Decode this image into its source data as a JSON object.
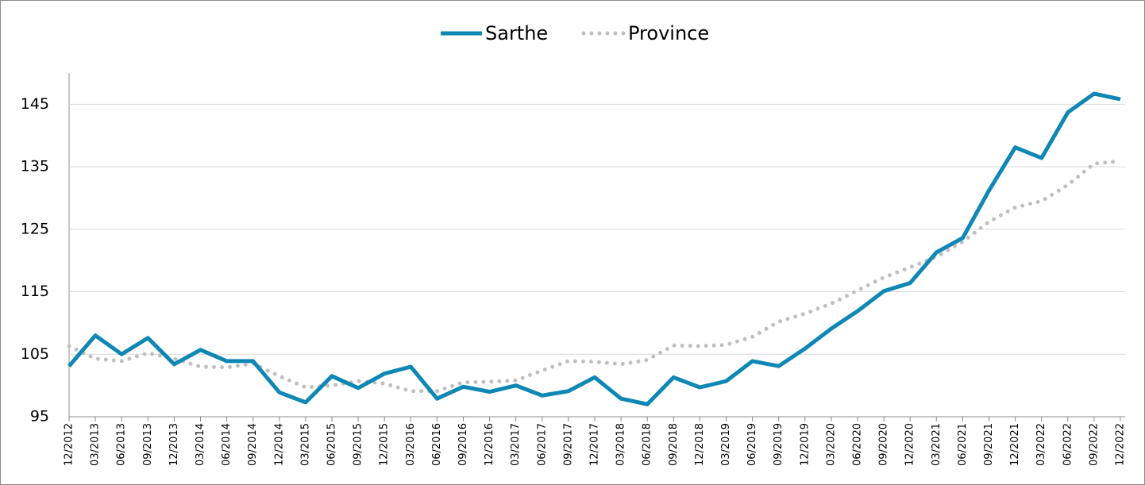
{
  "chart_data": {
    "type": "line",
    "categories": [
      "12/2012",
      "03/2013",
      "06/2013",
      "09/2013",
      "12/2013",
      "03/2014",
      "06/2014",
      "09/2014",
      "12/2014",
      "03/2015",
      "06/2015",
      "09/2015",
      "12/2015",
      "03/2016",
      "06/2016",
      "09/2016",
      "12/2016",
      "03/2017",
      "06/2017",
      "09/2017",
      "12/2017",
      "03/2018",
      "06/2018",
      "09/2018",
      "12/2018",
      "03/2019",
      "06/2019",
      "09/2019",
      "12/2019",
      "03/2020",
      "06/2020",
      "09/2020",
      "12/2020",
      "03/2021",
      "06/2021",
      "09/2021",
      "12/2021",
      "03/2022",
      "06/2022",
      "09/2022",
      "12/2022"
    ],
    "series": [
      {
        "name": "Sarthe",
        "color": "#0f87b5",
        "style": "solid",
        "values": [
          103.1,
          108,
          105,
          107.6,
          103.4,
          105.7,
          103.9,
          103.9,
          98.9,
          97.3,
          101.5,
          99.6,
          101.9,
          103,
          97.9,
          99.8,
          99,
          100,
          98.4,
          99.1,
          101.3,
          97.9,
          97,
          101.3,
          99.7,
          100.7,
          103.9,
          103.1,
          105.9,
          109.1,
          111.9,
          115.1,
          116.4,
          121.3,
          123.6,
          131.2,
          138.1,
          136.4,
          143.7,
          146.7,
          145.8
        ]
      },
      {
        "name": "Province",
        "color": "#c0c0c0",
        "style": "dotted",
        "values": [
          106.3,
          104.3,
          103.9,
          105.2,
          104.3,
          103,
          102.9,
          103.5,
          101.5,
          99.7,
          100,
          100.7,
          100.3,
          99.1,
          99.1,
          100.5,
          100.6,
          100.8,
          102.4,
          103.9,
          103.8,
          103.4,
          104.1,
          106.4,
          106.3,
          106.5,
          107.8,
          110.2,
          111.5,
          113.1,
          115.2,
          117.3,
          118.9,
          120.6,
          123,
          126.2,
          128.5,
          129.5,
          132.1,
          135.5,
          135.9
        ]
      }
    ],
    "ylim": [
      95,
      150
    ],
    "yticks": [
      95,
      105,
      115,
      125,
      135,
      145
    ],
    "grid": true,
    "legend": "top"
  }
}
